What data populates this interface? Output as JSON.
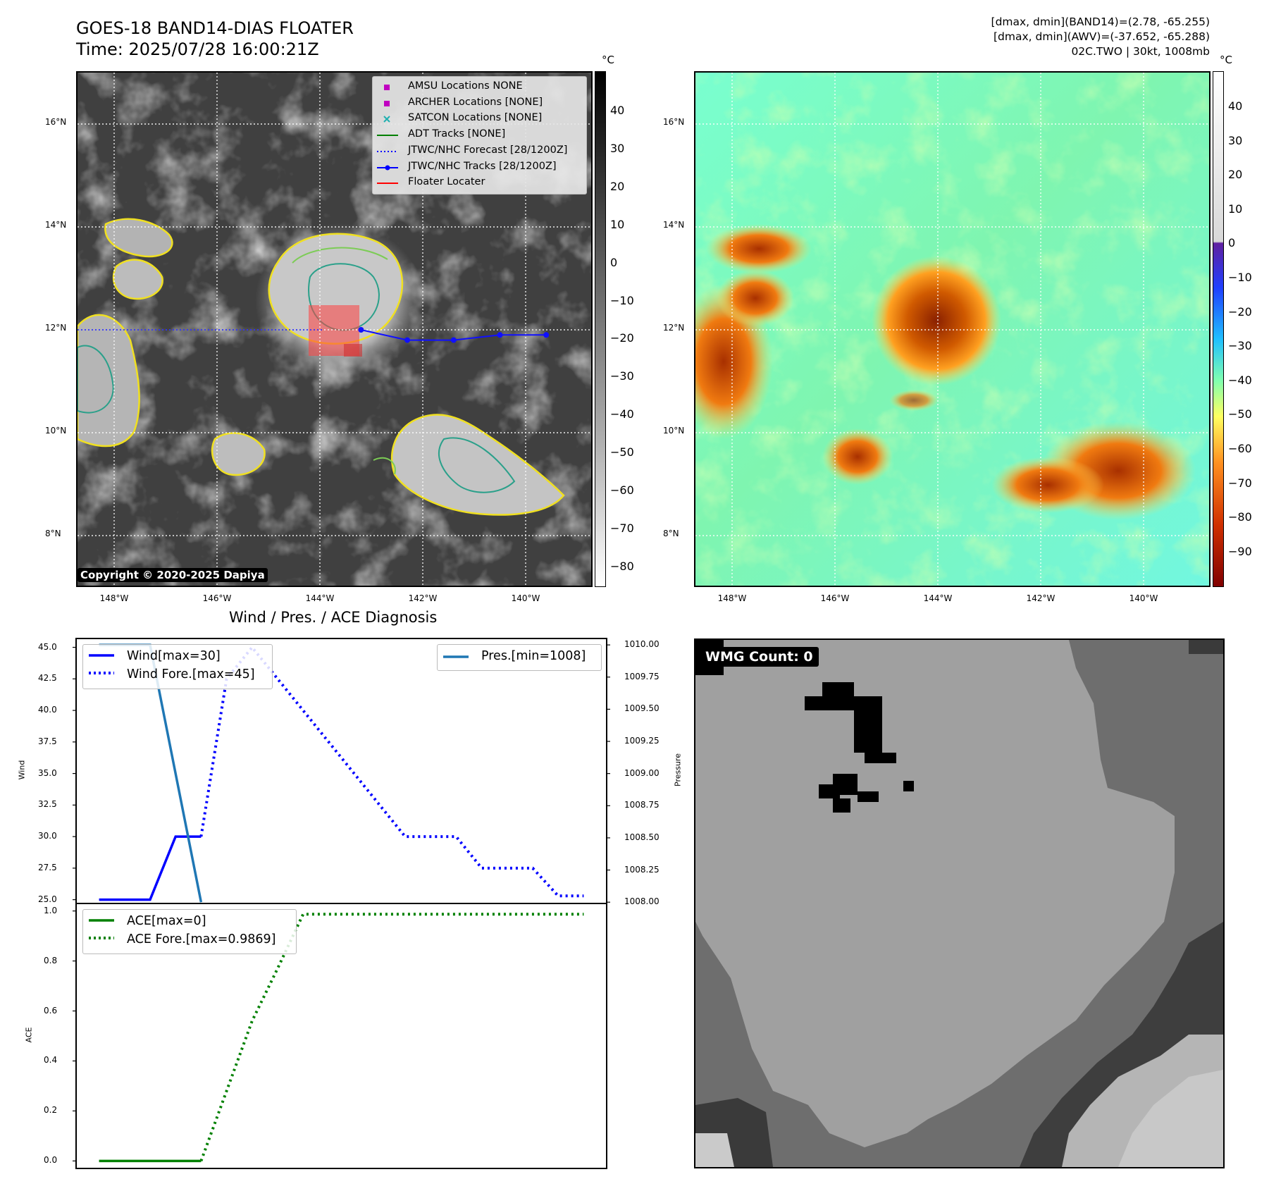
{
  "header": {
    "title_line1": "GOES-18 BAND14-DIAS FLOATER",
    "title_line2": "Time: 2025/07/28 16:00:21Z",
    "info_line1": "[dmax, dmin](BAND14)=(2.78, -65.255)",
    "info_line2": "[dmax, dmin](AWV)=(-37.652, -65.288)",
    "info_line3": "02C.TWO | 30kt, 1008mb"
  },
  "map": {
    "lat_labels": [
      "16°N",
      "14°N",
      "12°N",
      "10°N",
      "8°N"
    ],
    "lon_labels": [
      "148°W",
      "146°W",
      "144°W",
      "142°W",
      "140°W"
    ],
    "copyright": "Copyright © 2020-2025 Dapiya",
    "unit": "°C",
    "ir_colorbar_ticks": [
      "40",
      "30",
      "20",
      "10",
      "0",
      "−10",
      "−20",
      "−30",
      "−40",
      "−50",
      "−60",
      "−70",
      "−80"
    ],
    "awv_colorbar_ticks": [
      "40",
      "30",
      "20",
      "10",
      "0",
      "−10",
      "−20",
      "−30",
      "−40",
      "−50",
      "−60",
      "−70",
      "−80",
      "−90"
    ],
    "legend": [
      {
        "label": "AMSU Locations NONE",
        "marker": "square",
        "color": "#c000c0"
      },
      {
        "label": "ARCHER Locations [NONE]",
        "marker": "square",
        "color": "#c000c0"
      },
      {
        "label": "SATCON Locations [NONE]",
        "marker": "x",
        "color": "#20b0b0"
      },
      {
        "label": "ADT Tracks [NONE]",
        "marker": "line",
        "color": "#008000"
      },
      {
        "label": "JTWC/NHC Forecast [28/1200Z]",
        "marker": "dotted",
        "color": "#0000ff"
      },
      {
        "label": "JTWC/NHC Tracks [28/1200Z]",
        "marker": "line-dot",
        "color": "#0000ff"
      },
      {
        "label": "Floater Locater",
        "marker": "line",
        "color": "#ff0000"
      }
    ],
    "track_lon": [
      -143.2,
      -142.3,
      -141.4,
      -140.5,
      -139.6
    ],
    "track_lat": [
      12.0,
      11.8,
      11.8,
      11.9,
      11.9
    ]
  },
  "diagnosis": {
    "title": "Wind / Pres. / ACE Diagnosis",
    "wind_ylabel": "Wind",
    "pres_ylabel": "Pressure",
    "ace_ylabel": "ACE",
    "wind_ticks": [
      "45.0",
      "42.5",
      "40.0",
      "37.5",
      "35.0",
      "32.5",
      "30.0",
      "27.5",
      "25.0"
    ],
    "pres_ticks": [
      "1010.00",
      "1009.75",
      "1009.50",
      "1009.25",
      "1009.00",
      "1008.75",
      "1008.50",
      "1008.25",
      "1008.00"
    ],
    "ace_ticks": [
      "1.0",
      "0.8",
      "0.6",
      "0.4",
      "0.2",
      "0.0"
    ],
    "legend_wind": "Wind[max=30]",
    "legend_wind_fore": "Wind Fore.[max=45]",
    "legend_pres": "Pres.[min=1008]",
    "legend_ace": "ACE[max=0]",
    "legend_ace_fore": "ACE Fore.[max=0.9869]"
  },
  "wmg": {
    "label": "WMG Count: 0"
  },
  "chart_data": [
    {
      "type": "line",
      "title": "Wind / Pres. / ACE Diagnosis",
      "ylabel": "Wind",
      "ylim": [
        24.7,
        45.7
      ],
      "x": [
        0,
        1,
        2,
        3,
        4,
        5,
        6,
        7,
        8,
        9,
        10,
        11,
        12,
        13,
        14,
        15,
        16,
        17,
        18,
        19
      ],
      "series": [
        {
          "name": "Wind[max=30]",
          "style": "solid",
          "color": "#0000ff",
          "x": [
            0,
            2,
            3,
            4
          ],
          "values": [
            25,
            25,
            30,
            30
          ]
        },
        {
          "name": "Wind Fore.[max=45]",
          "style": "dotted",
          "color": "#0000ff",
          "x": [
            4,
            5,
            6,
            7,
            8,
            9,
            10,
            11,
            12,
            13,
            14,
            15,
            16,
            17,
            18,
            19
          ],
          "values": [
            30,
            42.5,
            45,
            42.5,
            40,
            37.5,
            35,
            32.5,
            30,
            30,
            30,
            27.5,
            27.5,
            27.5,
            25.3,
            25.3
          ]
        }
      ]
    },
    {
      "type": "line",
      "ylabel": "Pressure",
      "ylim": [
        1007.99,
        1010.05
      ],
      "series": [
        {
          "name": "Pres.[min=1008]",
          "style": "solid",
          "color": "#1f77b4",
          "x": [
            0,
            1,
            2,
            4
          ],
          "values": [
            1010,
            1010,
            1010,
            1008
          ]
        }
      ]
    },
    {
      "type": "line",
      "ylabel": "ACE",
      "ylim": [
        -0.03,
        1.03
      ],
      "series": [
        {
          "name": "ACE[max=0]",
          "style": "solid",
          "color": "#008000",
          "x": [
            0,
            1,
            2,
            3,
            4
          ],
          "values": [
            0,
            0,
            0,
            0,
            0
          ]
        },
        {
          "name": "ACE Fore.[max=0.9869]",
          "style": "dotted",
          "color": "#008000",
          "x": [
            4,
            5,
            6,
            7,
            8,
            9,
            10,
            11,
            12,
            13,
            14,
            15,
            16,
            17,
            18,
            19
          ],
          "values": [
            0,
            0.28,
            0.56,
            0.77,
            0.9869,
            0.9869,
            0.9869,
            0.9869,
            0.9869,
            0.9869,
            0.9869,
            0.9869,
            0.9869,
            0.9869,
            0.9869,
            0.9869
          ]
        }
      ]
    }
  ]
}
